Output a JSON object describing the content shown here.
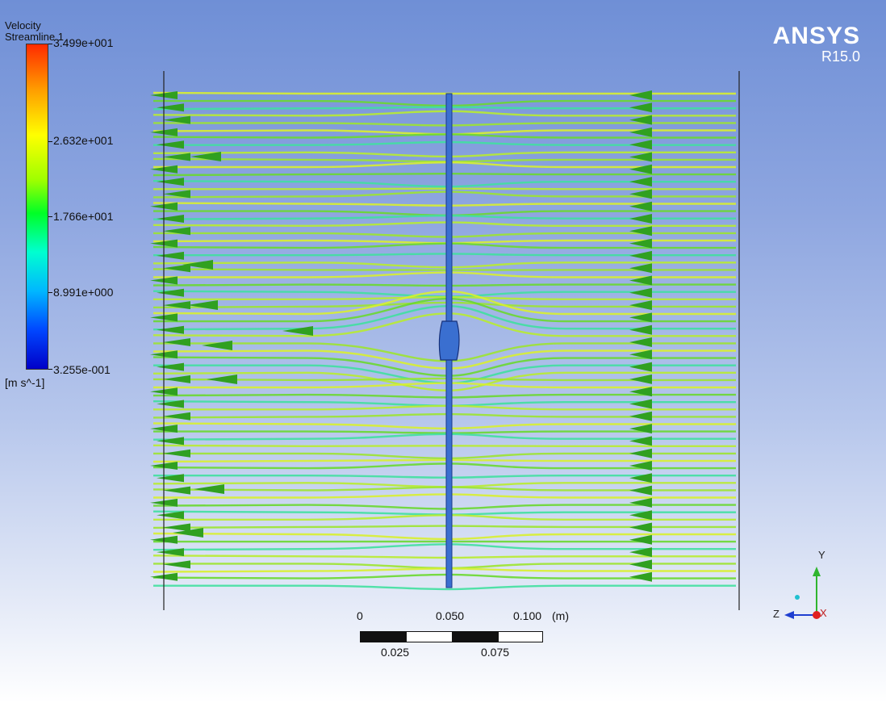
{
  "legend": {
    "title": "Velocity",
    "subtitle": "Streamline 1",
    "ticks": [
      "3.499e+001",
      "2.632e+001",
      "1.766e+001",
      "8.991e+000",
      "3.255e-001"
    ],
    "unit": "[m s^-1]"
  },
  "brand": {
    "name": "ANSYS",
    "version": "R15.0"
  },
  "scale_bar": {
    "top_labels": [
      "0",
      "0.050",
      "0.100"
    ],
    "unit": "(m)",
    "bottom_labels": [
      "0.025",
      "0.075"
    ]
  },
  "axis_triad": {
    "y": "Y",
    "z": "Z",
    "x": "X"
  },
  "colors": {
    "background_top": "#6f8fd6",
    "background_bottom": "#ffffff",
    "streamline_yellow": "#d8f030",
    "streamline_green": "#6ad830",
    "streamline_cyan": "#40e0a0",
    "arrow": "#30a020",
    "body": "#3a6fd0"
  }
}
